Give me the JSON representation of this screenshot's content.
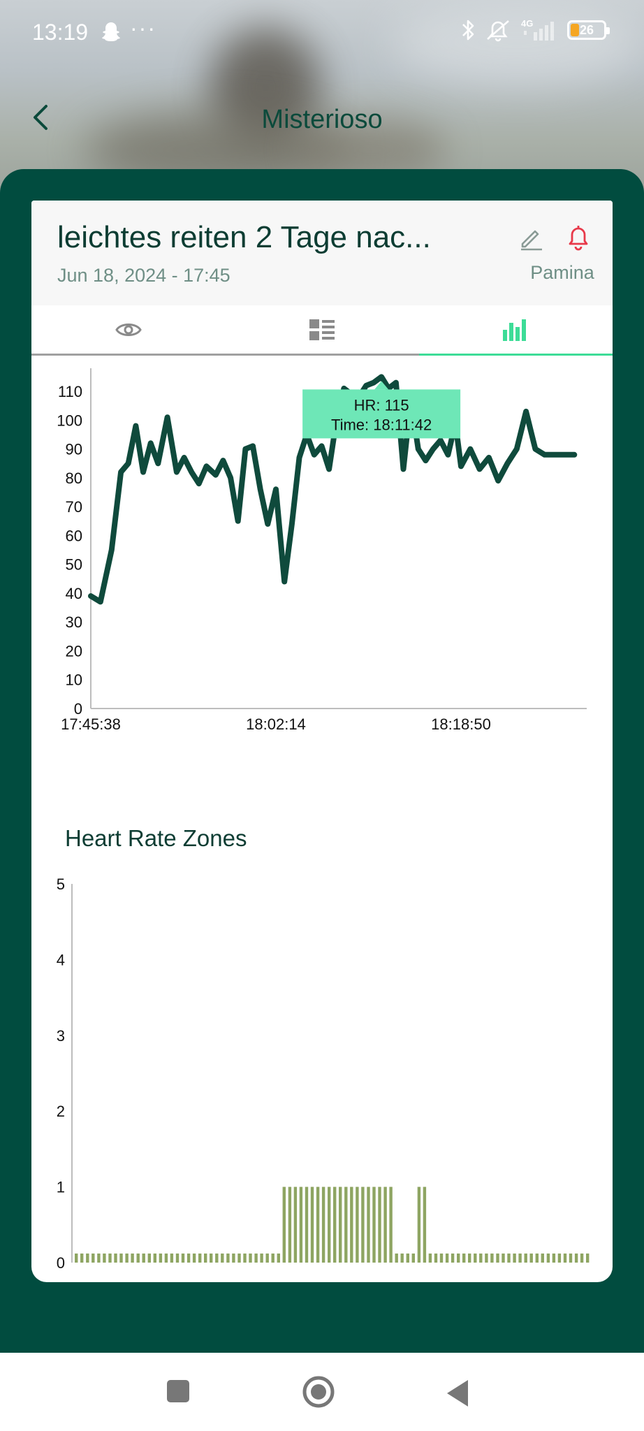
{
  "status_bar": {
    "time": "13:19",
    "more": "···",
    "battery": "26",
    "network": "4G"
  },
  "header": {
    "title": "Misterioso",
    "back_icon": "chevron-left-icon"
  },
  "entry": {
    "title": "leichtes reiten 2 Tage  nac...",
    "date": "Jun 18, 2024 - 17:45",
    "horse": "Pamina"
  },
  "tabs": [
    {
      "name": "overview",
      "icon": "eye-icon",
      "active": false
    },
    {
      "name": "details",
      "icon": "list-icon",
      "active": false
    },
    {
      "name": "charts",
      "icon": "bar-chart-icon",
      "active": true
    }
  ],
  "colors": {
    "brand_dark": "#014c3f",
    "accent": "#3ddc97",
    "line": "#0f4a3c",
    "zone_bar": "#8ea562",
    "alert": "#e8394a"
  },
  "chart_data": [
    {
      "type": "line",
      "title": "",
      "series": [
        {
          "name": "HR",
          "x": [
            "17:45:38",
            "17:46:30",
            "17:47:30",
            "17:48:20",
            "17:49:00",
            "17:49:40",
            "17:50:20",
            "17:51:00",
            "17:51:40",
            "17:52:30",
            "17:53:20",
            "17:54:00",
            "17:54:40",
            "17:55:20",
            "17:56:00",
            "17:56:50",
            "17:57:30",
            "17:58:10",
            "17:58:50",
            "17:59:30",
            "18:00:10",
            "18:00:50",
            "18:01:30",
            "18:02:14",
            "18:03:00",
            "18:03:40",
            "18:04:20",
            "18:05:00",
            "18:05:40",
            "18:06:20",
            "18:07:00",
            "18:07:40",
            "18:08:20",
            "18:09:00",
            "18:09:40",
            "18:10:20",
            "18:11:00",
            "18:11:42",
            "18:12:20",
            "18:13:00",
            "18:13:40",
            "18:14:20",
            "18:15:00",
            "18:15:40",
            "18:16:20",
            "18:17:00",
            "18:17:40",
            "18:18:20",
            "18:18:50",
            "18:19:40",
            "18:20:30",
            "18:21:20",
            "18:22:10",
            "18:23:00",
            "18:23:50",
            "18:24:40",
            "18:25:30",
            "18:26:20",
            "18:27:10",
            "18:28:00",
            "18:29:00"
          ],
          "values": [
            39,
            37,
            55,
            82,
            85,
            98,
            82,
            92,
            85,
            101,
            82,
            87,
            82,
            78,
            84,
            81,
            86,
            80,
            65,
            90,
            91,
            76,
            64,
            76,
            44,
            64,
            87,
            95,
            88,
            91,
            83,
            100,
            111,
            109,
            108,
            112,
            113,
            115,
            111,
            113,
            83,
            107,
            90,
            86,
            90,
            93,
            88,
            99,
            84,
            90,
            83,
            87,
            79,
            85,
            90,
            103,
            90,
            88,
            88,
            88,
            88
          ]
        }
      ],
      "xticks": [
        "17:45:38",
        "18:02:14",
        "18:18:50"
      ],
      "yticks": [
        0,
        10,
        20,
        30,
        40,
        50,
        60,
        70,
        80,
        90,
        100,
        110
      ],
      "ylim": [
        0,
        118
      ],
      "tooltip": {
        "hr_label": "HR: 115",
        "time_label": "Time: 18:11:42"
      }
    },
    {
      "type": "bar",
      "title": "Heart Rate Zones",
      "yticks": [
        0,
        1,
        2,
        3,
        4,
        5
      ],
      "ylim": [
        0,
        5
      ],
      "values": [
        0.12,
        0.12,
        0.12,
        0.12,
        0.12,
        0.12,
        0.12,
        0.12,
        0.12,
        0.12,
        0.12,
        0.12,
        0.12,
        0.12,
        0.12,
        0.12,
        0.12,
        0.12,
        0.12,
        0.12,
        0.12,
        0.12,
        0.12,
        0.12,
        0.12,
        0.12,
        0.12,
        0.12,
        0.12,
        0.12,
        0.12,
        0.12,
        0.12,
        0.12,
        0.12,
        0.12,
        0.12,
        1,
        1,
        1,
        1,
        1,
        1,
        1,
        1,
        1,
        1,
        1,
        1,
        1,
        1,
        1,
        1,
        1,
        1,
        1,
        1,
        0.12,
        0.12,
        0.12,
        0.12,
        1,
        1,
        0.12,
        0.12,
        0.12,
        0.12,
        0.12,
        0.12,
        0.12,
        0.12,
        0.12,
        0.12,
        0.12,
        0.12,
        0.12,
        0.12,
        0.12,
        0.12,
        0.12,
        0.12,
        0.12,
        0.12,
        0.12,
        0.12,
        0.12,
        0.12,
        0.12,
        0.12,
        0.12,
        0.12,
        0.12
      ]
    }
  ]
}
